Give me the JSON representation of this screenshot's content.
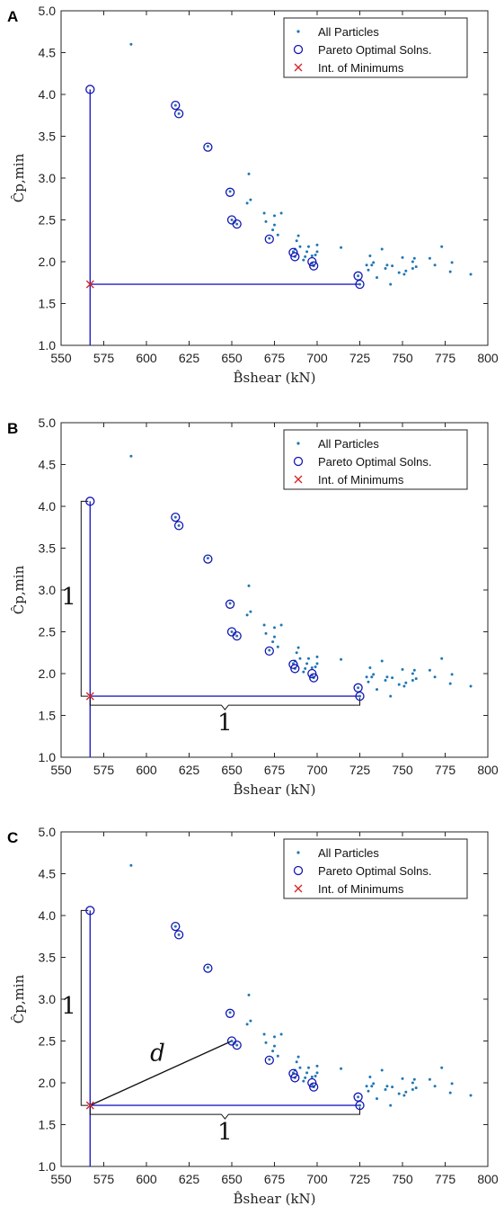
{
  "chart_data": [
    {
      "type": "scatter",
      "panel_label": "A",
      "xlabel": "B̂shear (kN)",
      "ylabel": "Ĉp,min",
      "xlim": [
        550,
        800
      ],
      "ylim": [
        1.0,
        5.0
      ],
      "xticks": [
        "550",
        "575",
        "600",
        "625",
        "650",
        "675",
        "700",
        "725",
        "750",
        "775",
        "800"
      ],
      "yticks": [
        "1.0",
        "1.5",
        "2.0",
        "2.5",
        "3.0",
        "3.5",
        "4.0",
        "4.5",
        "5.0"
      ],
      "legend_position": "top-right",
      "legend": [
        "All Particles",
        "Pareto Optimal Solns.",
        "Int. of Minimums"
      ],
      "annotations": []
    },
    {
      "type": "scatter",
      "panel_label": "B",
      "xlabel": "B̂shear (kN)",
      "ylabel": "Ĉp,min",
      "xlim": [
        550,
        800
      ],
      "ylim": [
        1.0,
        5.0
      ],
      "xticks": [
        "550",
        "575",
        "600",
        "625",
        "650",
        "675",
        "700",
        "725",
        "750",
        "775",
        "800"
      ],
      "yticks": [
        "1.0",
        "1.5",
        "2.0",
        "2.5",
        "3.0",
        "3.5",
        "4.0",
        "4.5",
        "5.0"
      ],
      "legend_position": "top-right",
      "legend": [
        "All Particles",
        "Pareto Optimal Solns.",
        "Int. of Minimums"
      ],
      "annotations": [
        "1",
        "1"
      ]
    },
    {
      "type": "scatter",
      "panel_label": "C",
      "xlabel": "B̂shear (kN)",
      "ylabel": "Ĉp,min",
      "xlim": [
        550,
        800
      ],
      "ylim": [
        1.0,
        5.0
      ],
      "xticks": [
        "550",
        "575",
        "600",
        "625",
        "650",
        "675",
        "700",
        "725",
        "750",
        "775",
        "800"
      ],
      "yticks": [
        "1.0",
        "1.5",
        "2.0",
        "2.5",
        "3.0",
        "3.5",
        "4.0",
        "4.5",
        "5.0"
      ],
      "legend_position": "top-right",
      "legend": [
        "All Particles",
        "Pareto Optimal Solns.",
        "Int. of Minimums"
      ],
      "annotations": [
        "1",
        "1",
        "d"
      ]
    }
  ],
  "series": {
    "all_particles": [
      [
        591,
        4.6
      ],
      [
        617,
        3.87
      ],
      [
        619,
        3.77
      ],
      [
        636,
        3.38
      ],
      [
        649,
        2.84
      ],
      [
        650,
        2.5
      ],
      [
        653,
        2.45
      ],
      [
        659,
        2.7
      ],
      [
        660,
        3.05
      ],
      [
        661,
        2.74
      ],
      [
        669,
        2.58
      ],
      [
        670,
        2.48
      ],
      [
        672,
        2.28
      ],
      [
        674,
        2.38
      ],
      [
        675,
        2.44
      ],
      [
        675,
        2.55
      ],
      [
        677,
        2.32
      ],
      [
        679,
        2.58
      ],
      [
        686,
        2.12
      ],
      [
        687,
        2.06
      ],
      [
        687,
        2.15
      ],
      [
        688,
        2.25
      ],
      [
        689,
        2.31
      ],
      [
        690,
        2.18
      ],
      [
        692,
        2.02
      ],
      [
        693,
        2.06
      ],
      [
        694,
        2.12
      ],
      [
        695,
        2.18
      ],
      [
        697,
        1.98
      ],
      [
        697,
        2.07
      ],
      [
        698,
        1.95
      ],
      [
        699,
        2.08
      ],
      [
        700,
        2.12
      ],
      [
        700,
        2.2
      ],
      [
        714,
        2.17
      ],
      [
        724,
        1.83
      ],
      [
        725,
        1.73
      ],
      [
        729,
        1.96
      ],
      [
        730,
        1.9
      ],
      [
        731,
        2.07
      ],
      [
        732,
        1.96
      ],
      [
        733,
        1.99
      ],
      [
        735,
        1.81
      ],
      [
        738,
        2.15
      ],
      [
        740,
        1.92
      ],
      [
        741,
        1.96
      ],
      [
        743,
        1.73
      ],
      [
        744,
        1.95
      ],
      [
        748,
        1.87
      ],
      [
        750,
        2.05
      ],
      [
        751,
        1.85
      ],
      [
        752,
        1.89
      ],
      [
        756,
        1.92
      ],
      [
        756,
        2.0
      ],
      [
        757,
        2.04
      ],
      [
        758,
        1.94
      ],
      [
        766,
        2.04
      ],
      [
        769,
        1.96
      ],
      [
        773,
        2.18
      ],
      [
        778,
        1.88
      ],
      [
        779,
        1.99
      ],
      [
        790,
        1.85
      ]
    ],
    "pareto_optimal": [
      [
        567,
        4.06
      ],
      [
        617,
        3.87
      ],
      [
        619,
        3.77
      ],
      [
        636,
        3.37
      ],
      [
        649,
        2.83
      ],
      [
        650,
        2.5
      ],
      [
        653,
        2.45
      ],
      [
        672,
        2.27
      ],
      [
        686,
        2.11
      ],
      [
        687,
        2.06
      ],
      [
        697,
        2.0
      ],
      [
        698,
        1.95
      ],
      [
        724,
        1.83
      ],
      [
        725,
        1.73
      ]
    ],
    "int_of_minimums": [
      567,
      1.73
    ]
  },
  "colors": {
    "particles": "#1f77b4",
    "pareto": "#1414b4",
    "minimum": "#d62728",
    "guide_lines": "#2020c8",
    "annotation": "#111111"
  }
}
